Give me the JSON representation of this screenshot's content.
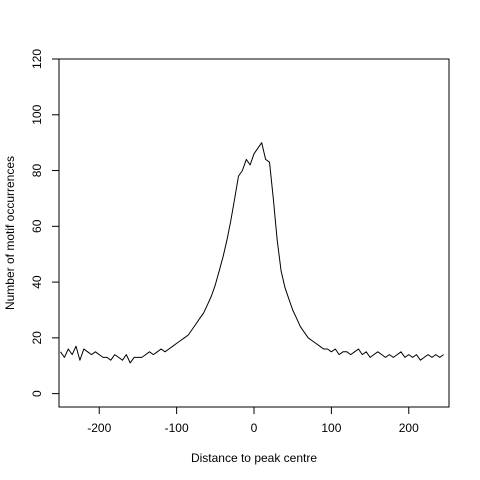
{
  "chart_data": {
    "type": "line",
    "title": "",
    "xlabel": "Distance to peak centre",
    "ylabel": "Number of motif occurrences",
    "xlim": [
      -252,
      252
    ],
    "ylim": [
      -4.8,
      120
    ],
    "xticks": [
      -200,
      -100,
      0,
      100,
      200
    ],
    "xtick_labels": [
      "-200",
      "-100",
      "0",
      "100",
      "200"
    ],
    "yticks": [
      0,
      20,
      40,
      60,
      80,
      100,
      120
    ],
    "ytick_labels": [
      "0",
      "20",
      "40",
      "60",
      "80",
      "100",
      "120"
    ],
    "grid": false,
    "series": [
      {
        "line_color": "#000000",
        "x": [
          -250,
          -245,
          -240,
          -235,
          -230,
          -225,
          -220,
          -215,
          -210,
          -205,
          -200,
          -195,
          -190,
          -185,
          -180,
          -175,
          -170,
          -165,
          -160,
          -155,
          -150,
          -145,
          -140,
          -135,
          -130,
          -125,
          -120,
          -115,
          -110,
          -105,
          -100,
          -95,
          -90,
          -85,
          -80,
          -75,
          -70,
          -65,
          -60,
          -55,
          -50,
          -45,
          -40,
          -35,
          -30,
          -25,
          -20,
          -15,
          -10,
          -5,
          0,
          5,
          10,
          15,
          20,
          25,
          30,
          35,
          40,
          45,
          50,
          55,
          60,
          65,
          70,
          75,
          80,
          85,
          90,
          95,
          100,
          105,
          110,
          115,
          120,
          125,
          130,
          135,
          140,
          145,
          150,
          155,
          160,
          165,
          170,
          175,
          180,
          185,
          190,
          195,
          200,
          205,
          210,
          215,
          220,
          225,
          230,
          235,
          240,
          245
        ],
        "y": [
          15,
          13,
          16,
          14,
          17,
          12,
          16,
          15,
          14,
          15,
          14,
          13,
          13,
          12,
          14,
          13,
          12,
          14,
          11,
          13,
          13,
          13,
          14,
          15,
          14,
          15,
          16,
          15,
          16,
          17,
          18,
          19,
          20,
          21,
          23,
          25,
          27,
          29,
          32,
          35,
          39,
          44,
          49,
          55,
          62,
          70,
          78,
          80,
          84,
          82,
          86,
          88,
          90,
          84,
          83,
          70,
          55,
          44,
          38,
          34,
          30,
          27,
          24,
          22,
          20,
          19,
          18,
          17,
          16,
          16,
          15,
          16,
          14,
          15,
          15,
          14,
          15,
          16,
          14,
          15,
          13,
          14,
          15,
          14,
          13,
          14,
          13,
          14,
          15,
          13,
          14,
          13,
          14,
          12,
          13,
          14,
          13,
          14,
          13,
          14
        ]
      }
    ]
  }
}
